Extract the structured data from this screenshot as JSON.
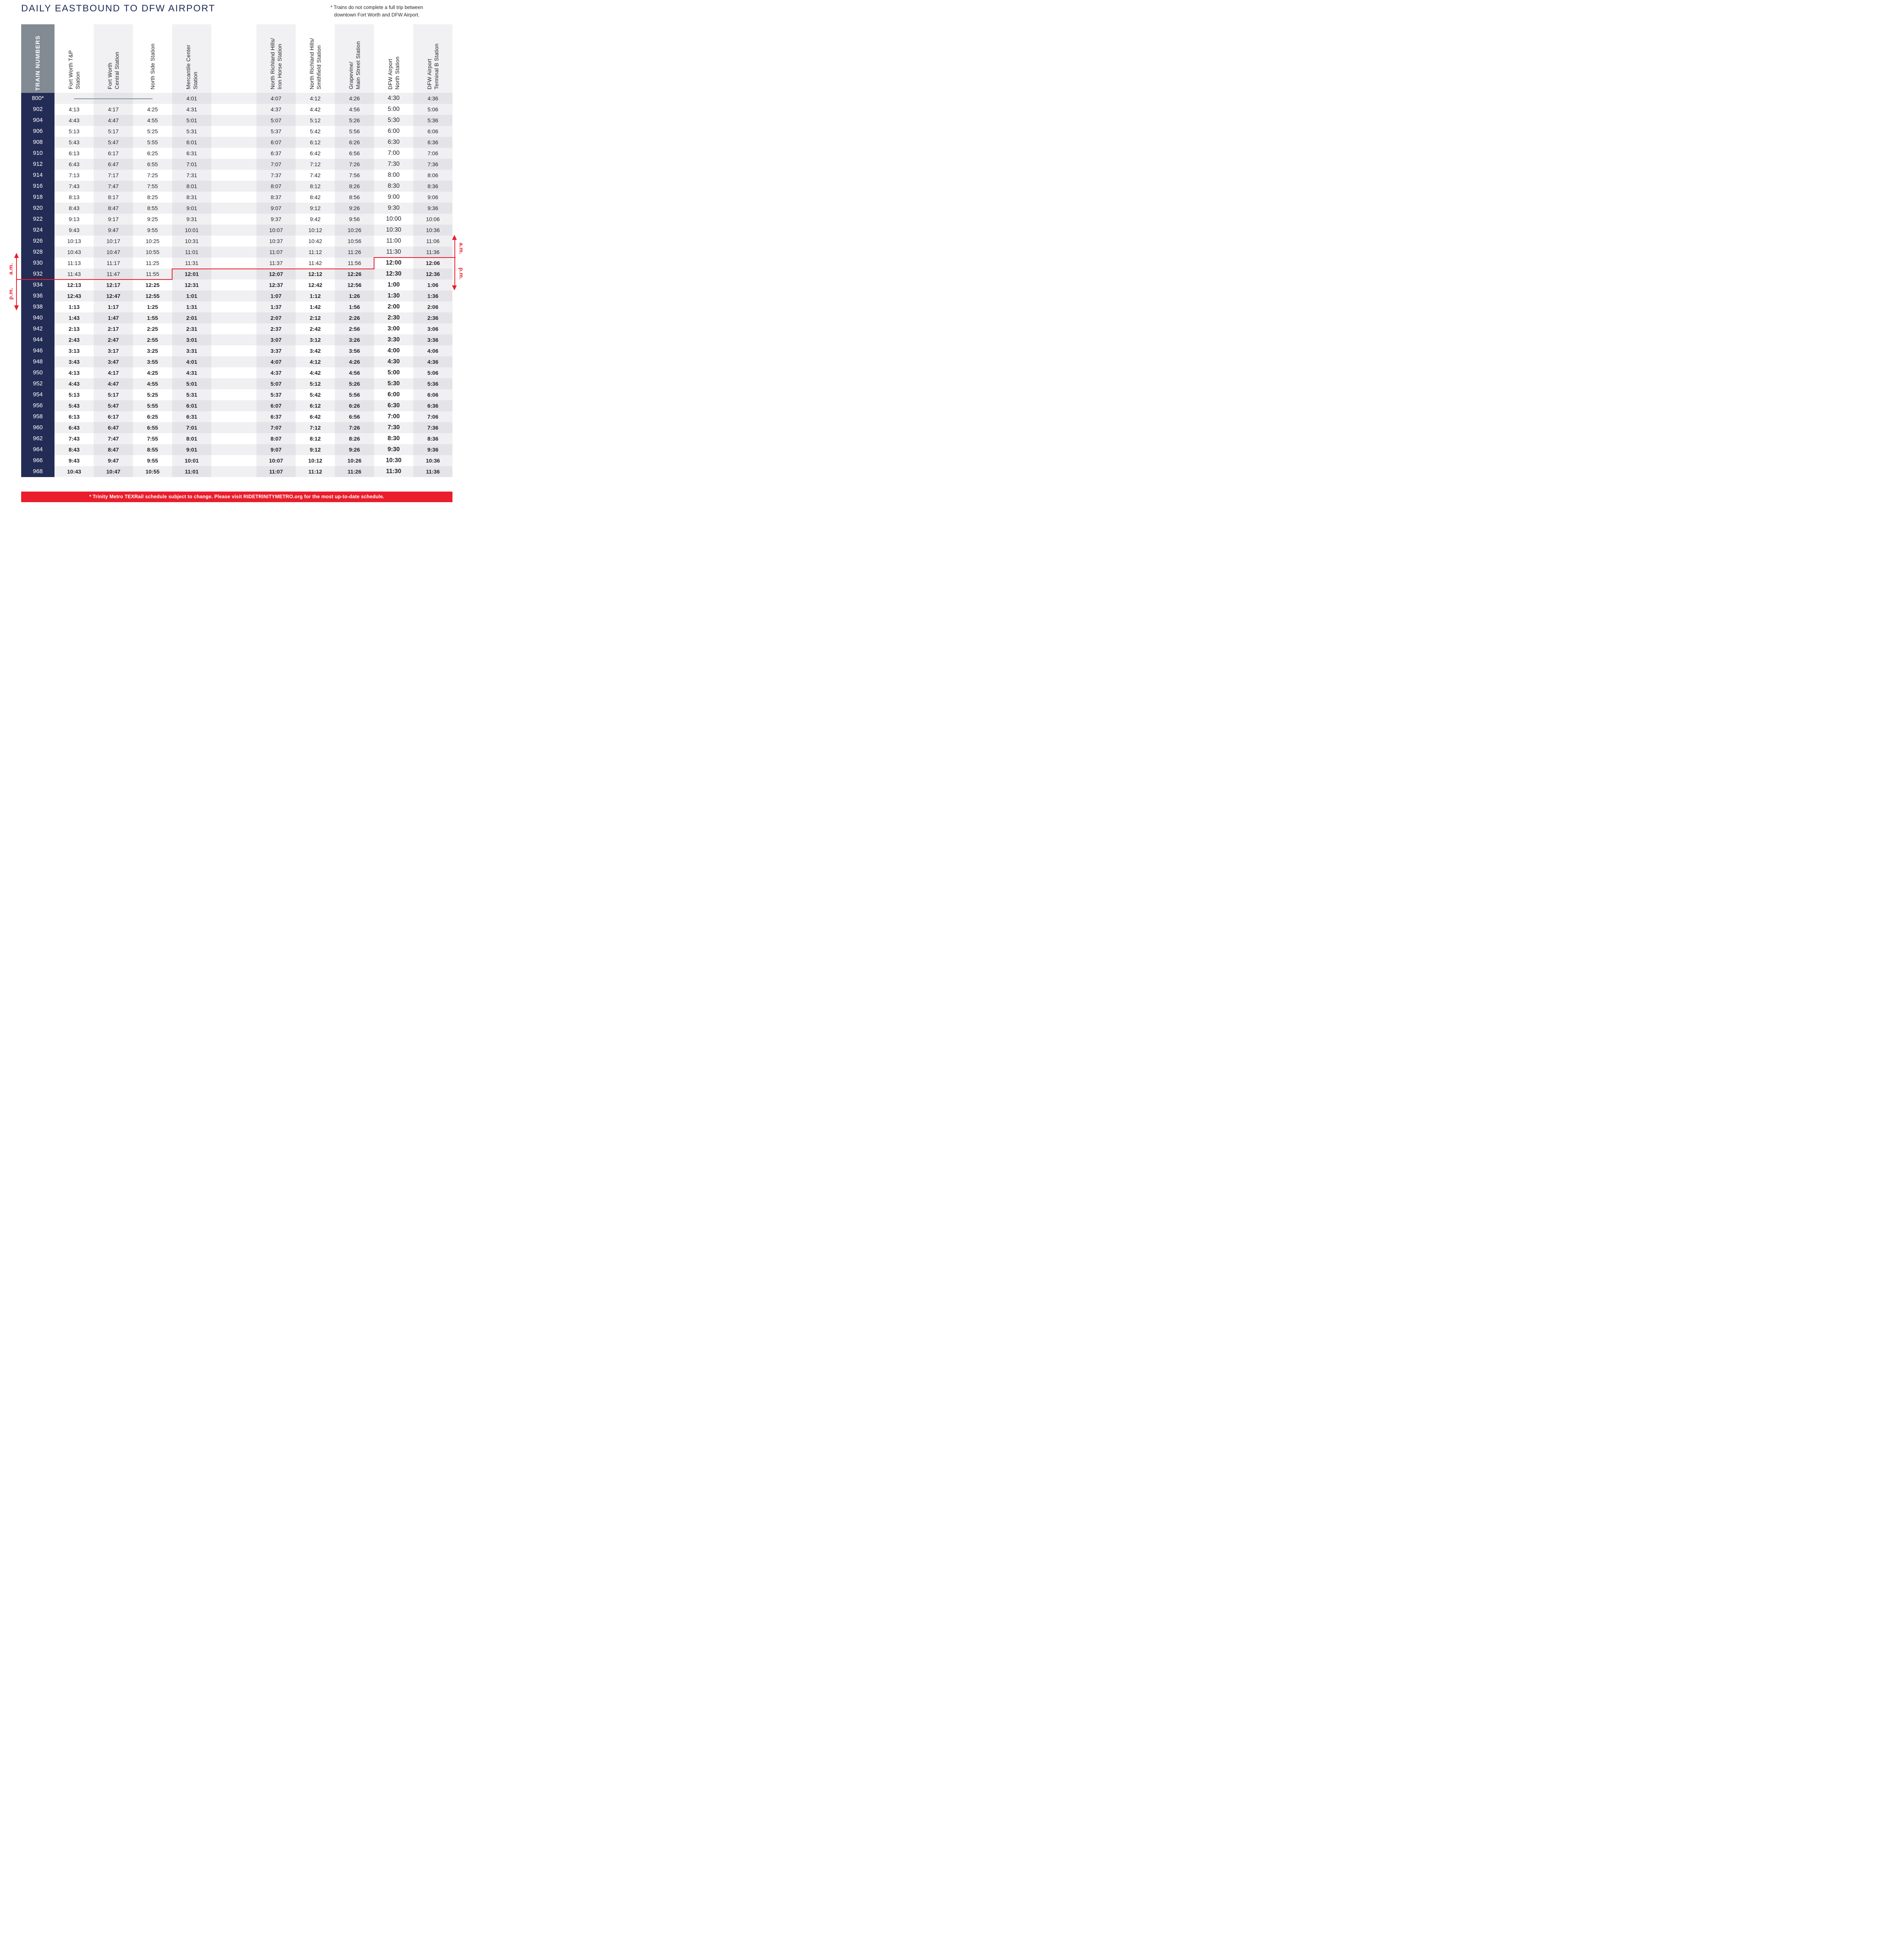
{
  "title": "DAILY EASTBOUND TO DFW AIRPORT",
  "note": {
    "line1": "* Trains do not complete a full trip between",
    "line2": "downtown Fort Worth and DFW Airport."
  },
  "annotations": {
    "am_label": "a.m.",
    "pm_label": "p.m.",
    "footer": "* Trinity Metro TEXRail schedule subject to change. Please visit RIDETRINITYMETRO.org for the most up-to-date schedule."
  },
  "colors": {
    "accent_red": "#E91D2C",
    "navy": "#232C55",
    "header_gray": "#828B94",
    "stripe_light": "#F0F0F2",
    "stripe_dark": "#E4E4E8",
    "no_service_gray": "#82909A"
  },
  "table": {
    "train_numbers_header": "TRAIN NUMBERS",
    "columns": [
      {
        "id": "fort-worth-tp",
        "lines": [
          "Fort Worth T&P",
          "Station"
        ],
        "striped": false,
        "emphasis": false
      },
      {
        "id": "fort-worth-central",
        "lines": [
          "Fort Worth",
          "Central Station"
        ],
        "striped": true,
        "emphasis": false
      },
      {
        "id": "north-side",
        "lines": [
          "North Side Station"
        ],
        "striped": false,
        "emphasis": false
      },
      {
        "id": "mercantile-center",
        "lines": [
          "Mercantile Center",
          "Station"
        ],
        "striped": true,
        "emphasis": false
      },
      {
        "id": "nrh-iron-horse",
        "lines": [
          "North Richland Hills/",
          "Iron Horse Station"
        ],
        "striped": true,
        "emphasis": false
      },
      {
        "id": "nrh-smithfield",
        "lines": [
          "North Richland Hills/",
          "Smithfield Station"
        ],
        "striped": false,
        "emphasis": false
      },
      {
        "id": "grapevine-main",
        "lines": [
          "Grapevine/",
          "Main Street Station"
        ],
        "striped": true,
        "emphasis": false
      },
      {
        "id": "dfw-airport-north",
        "lines": [
          "DFW Airport",
          "North Station"
        ],
        "striped": false,
        "emphasis": true
      },
      {
        "id": "dfw-terminal-b",
        "lines": [
          "DFW Airport",
          "Terminal B Station"
        ],
        "striped": true,
        "emphasis": false
      }
    ],
    "rows": [
      {
        "train": "800*",
        "times": [
          "",
          "",
          "",
          "4:01",
          "4:07",
          "4:12",
          "4:26",
          "4:30",
          "4:36"
        ],
        "pm_from": null,
        "no_service_dash": true
      },
      {
        "train": "902",
        "times": [
          "4:13",
          "4:17",
          "4:25",
          "4:31",
          "4:37",
          "4:42",
          "4:56",
          "5:00",
          "5:06"
        ],
        "pm_from": null
      },
      {
        "train": "904",
        "times": [
          "4:43",
          "4:47",
          "4:55",
          "5:01",
          "5:07",
          "5:12",
          "5:26",
          "5:30",
          "5:36"
        ],
        "pm_from": null
      },
      {
        "train": "906",
        "times": [
          "5:13",
          "5:17",
          "5:25",
          "5:31",
          "5:37",
          "5:42",
          "5:56",
          "6:00",
          "6:06"
        ],
        "pm_from": null
      },
      {
        "train": "908",
        "times": [
          "5:43",
          "5:47",
          "5:55",
          "6:01",
          "6:07",
          "6:12",
          "6:26",
          "6:30",
          "6:36"
        ],
        "pm_from": null
      },
      {
        "train": "910",
        "times": [
          "6:13",
          "6:17",
          "6:25",
          "6:31",
          "6:37",
          "6:42",
          "6:56",
          "7:00",
          "7:06"
        ],
        "pm_from": null
      },
      {
        "train": "912",
        "times": [
          "6:43",
          "6:47",
          "6:55",
          "7:01",
          "7:07",
          "7:12",
          "7:26",
          "7:30",
          "7:36"
        ],
        "pm_from": null
      },
      {
        "train": "914",
        "times": [
          "7:13",
          "7:17",
          "7:25",
          "7:31",
          "7:37",
          "7:42",
          "7:56",
          "8:00",
          "8:06"
        ],
        "pm_from": null
      },
      {
        "train": "916",
        "times": [
          "7:43",
          "7:47",
          "7:55",
          "8:01",
          "8:07",
          "8:12",
          "8:26",
          "8:30",
          "8:36"
        ],
        "pm_from": null
      },
      {
        "train": "918",
        "times": [
          "8:13",
          "8:17",
          "8:25",
          "8:31",
          "8:37",
          "8:42",
          "8:56",
          "9:00",
          "9:06"
        ],
        "pm_from": null
      },
      {
        "train": "920",
        "times": [
          "8:43",
          "8:47",
          "8:55",
          "9:01",
          "9:07",
          "9:12",
          "9:26",
          "9:30",
          "9:36"
        ],
        "pm_from": null
      },
      {
        "train": "922",
        "times": [
          "9:13",
          "9:17",
          "9:25",
          "9:31",
          "9:37",
          "9:42",
          "9:56",
          "10:00",
          "10:06"
        ],
        "pm_from": null
      },
      {
        "train": "924",
        "times": [
          "9:43",
          "9:47",
          "9:55",
          "10:01",
          "10:07",
          "10:12",
          "10:26",
          "10:30",
          "10:36"
        ],
        "pm_from": null
      },
      {
        "train": "926",
        "times": [
          "10:13",
          "10:17",
          "10:25",
          "10:31",
          "10:37",
          "10:42",
          "10:56",
          "11:00",
          "11:06"
        ],
        "pm_from": null
      },
      {
        "train": "928",
        "times": [
          "10:43",
          "10:47",
          "10:55",
          "11:01",
          "11:07",
          "11:12",
          "11:26",
          "11:30",
          "11:36"
        ],
        "pm_from": null
      },
      {
        "train": "930",
        "times": [
          "11:13",
          "11:17",
          "11:25",
          "11:31",
          "11:37",
          "11:42",
          "11:56",
          "12:00",
          "12:06"
        ],
        "pm_from": 7
      },
      {
        "train": "932",
        "times": [
          "11:43",
          "11:47",
          "11:55",
          "12:01",
          "12:07",
          "12:12",
          "12:26",
          "12:30",
          "12:36"
        ],
        "pm_from": 3
      },
      {
        "train": "934",
        "times": [
          "12:13",
          "12:17",
          "12:25",
          "12:31",
          "12:37",
          "12:42",
          "12:56",
          "1:00",
          "1:06"
        ],
        "pm_from": 0
      },
      {
        "train": "936",
        "times": [
          "12:43",
          "12:47",
          "12:55",
          "1:01",
          "1:07",
          "1:12",
          "1:26",
          "1:30",
          "1:36"
        ],
        "pm_from": 0
      },
      {
        "train": "938",
        "times": [
          "1:13",
          "1:17",
          "1:25",
          "1:31",
          "1:37",
          "1:42",
          "1:56",
          "2:00",
          "2:06"
        ],
        "pm_from": 0
      },
      {
        "train": "940",
        "times": [
          "1:43",
          "1:47",
          "1:55",
          "2:01",
          "2:07",
          "2:12",
          "2:26",
          "2:30",
          "2:36"
        ],
        "pm_from": 0
      },
      {
        "train": "942",
        "times": [
          "2:13",
          "2:17",
          "2:25",
          "2:31",
          "2:37",
          "2:42",
          "2:56",
          "3:00",
          "3:06"
        ],
        "pm_from": 0
      },
      {
        "train": "944",
        "times": [
          "2:43",
          "2:47",
          "2:55",
          "3:01",
          "3:07",
          "3:12",
          "3:26",
          "3:30",
          "3:36"
        ],
        "pm_from": 0
      },
      {
        "train": "946",
        "times": [
          "3:13",
          "3:17",
          "3:25",
          "3:31",
          "3:37",
          "3:42",
          "3:56",
          "4:00",
          "4:06"
        ],
        "pm_from": 0
      },
      {
        "train": "948",
        "times": [
          "3:43",
          "3:47",
          "3:55",
          "4:01",
          "4:07",
          "4:12",
          "4:26",
          "4:30",
          "4:36"
        ],
        "pm_from": 0
      },
      {
        "train": "950",
        "times": [
          "4:13",
          "4:17",
          "4:25",
          "4:31",
          "4:37",
          "4:42",
          "4:56",
          "5:00",
          "5:06"
        ],
        "pm_from": 0
      },
      {
        "train": "952",
        "times": [
          "4:43",
          "4:47",
          "4:55",
          "5:01",
          "5:07",
          "5:12",
          "5:26",
          "5:30",
          "5:36"
        ],
        "pm_from": 0
      },
      {
        "train": "954",
        "times": [
          "5:13",
          "5:17",
          "5:25",
          "5:31",
          "5:37",
          "5:42",
          "5:56",
          "6:00",
          "6:06"
        ],
        "pm_from": 0
      },
      {
        "train": "956",
        "times": [
          "5:43",
          "5:47",
          "5:55",
          "6:01",
          "6:07",
          "6:12",
          "6:26",
          "6:30",
          "6:36"
        ],
        "pm_from": 0
      },
      {
        "train": "958",
        "times": [
          "6:13",
          "6:17",
          "6:25",
          "6:31",
          "6:37",
          "6:42",
          "6:56",
          "7:00",
          "7:06"
        ],
        "pm_from": 0
      },
      {
        "train": "960",
        "times": [
          "6:43",
          "6:47",
          "6:55",
          "7:01",
          "7:07",
          "7:12",
          "7:26",
          "7:30",
          "7:36"
        ],
        "pm_from": 0
      },
      {
        "train": "962",
        "times": [
          "7:43",
          "7:47",
          "7:55",
          "8:01",
          "8:07",
          "8:12",
          "8:26",
          "8:30",
          "8:36"
        ],
        "pm_from": 0
      },
      {
        "train": "964",
        "times": [
          "8:43",
          "8:47",
          "8:55",
          "9:01",
          "9:07",
          "9:12",
          "9:26",
          "9:30",
          "9:36"
        ],
        "pm_from": 0
      },
      {
        "train": "966",
        "times": [
          "9:43",
          "9:47",
          "9:55",
          "10:01",
          "10:07",
          "10:12",
          "10:26",
          "10:30",
          "10:36"
        ],
        "pm_from": 0
      },
      {
        "train": "968",
        "times": [
          "10:43",
          "10:47",
          "10:55",
          "11:01",
          "11:07",
          "11:12",
          "11:26",
          "11:30",
          "11:36"
        ],
        "pm_from": 0
      }
    ]
  }
}
